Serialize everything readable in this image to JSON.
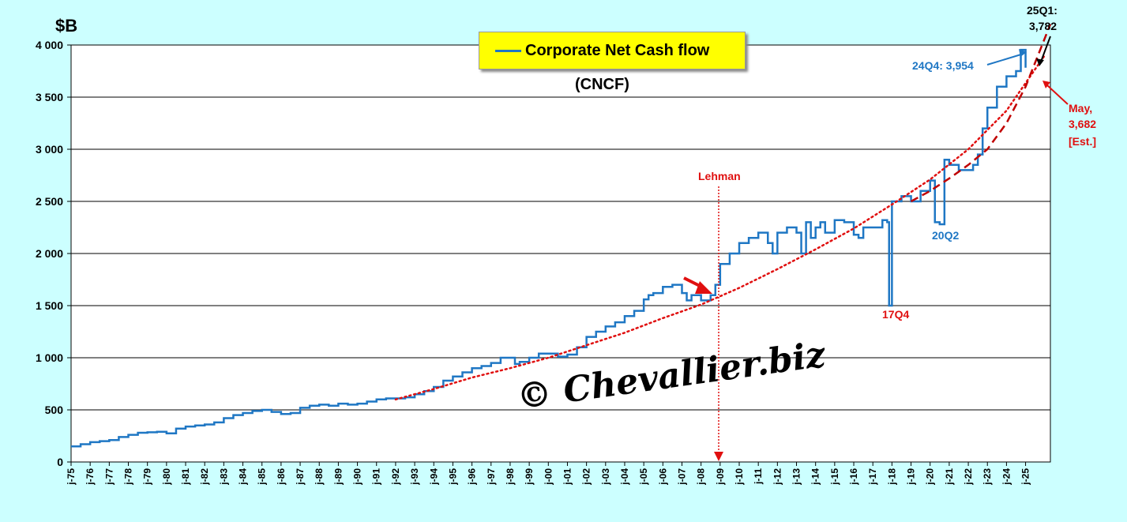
{
  "chart_data": {
    "type": "line",
    "ylabel": "$B",
    "ylim": [
      0,
      4000
    ],
    "yticks": [
      0,
      500,
      1000,
      1500,
      2000,
      2500,
      3000,
      3500,
      4000
    ],
    "ytick_labels": [
      "0",
      "500",
      "1 000",
      "1 500",
      "2 000",
      "2 500",
      "3 000",
      "3 500",
      "4 000"
    ],
    "xlim": [
      1975,
      2026.3
    ],
    "xtick_labels": [
      "j-75",
      "j-76",
      "j-77",
      "j-78",
      "j-79",
      "j-80",
      "j-81",
      "j-82",
      "j-83",
      "j-84",
      "j-85",
      "j-86",
      "j-87",
      "j-88",
      "j-89",
      "j-90",
      "j-91",
      "j-92",
      "j-93",
      "j-94",
      "j-95",
      "j-96",
      "j-97",
      "j-98",
      "j-99",
      "j-00",
      "j-01",
      "j-02",
      "j-03",
      "j-04",
      "j-05",
      "j-06",
      "j-07",
      "j-08",
      "j-09",
      "j-10",
      "j-11",
      "j-12",
      "j-13",
      "j-14",
      "j-15",
      "j-16",
      "j-17",
      "j-18",
      "j-19",
      "j-20",
      "j-21",
      "j-22",
      "j-23",
      "j-24",
      "j-25"
    ],
    "grid": true,
    "legend_label": "Corporate Net Cash flow",
    "subtitle": "(CNCF)",
    "series": [
      {
        "name": "Corporate Net Cash flow",
        "color": "#1f77c4",
        "x": [
          1975.0,
          1975.5,
          1976.0,
          1976.5,
          1977.0,
          1977.5,
          1978.0,
          1978.5,
          1979.0,
          1979.5,
          1980.0,
          1980.5,
          1981.0,
          1981.5,
          1982.0,
          1982.5,
          1983.0,
          1983.5,
          1984.0,
          1984.5,
          1985.0,
          1985.5,
          1986.0,
          1986.5,
          1987.0,
          1987.5,
          1988.0,
          1988.5,
          1989.0,
          1989.5,
          1990.0,
          1990.5,
          1991.0,
          1991.5,
          1992.0,
          1992.5,
          1993.0,
          1993.5,
          1994.0,
          1994.5,
          1995.0,
          1995.5,
          1996.0,
          1996.5,
          1997.0,
          1997.5,
          1998.0,
          1998.25,
          1998.5,
          1999.0,
          1999.5,
          2000.0,
          2000.5,
          2001.0,
          2001.5,
          2002.0,
          2002.5,
          2003.0,
          2003.5,
          2004.0,
          2004.5,
          2005.0,
          2005.25,
          2005.5,
          2006.0,
          2006.5,
          2007.0,
          2007.25,
          2007.5,
          2008.0,
          2008.5,
          2008.75,
          2009.0,
          2009.5,
          2010.0,
          2010.5,
          2011.0,
          2011.5,
          2011.75,
          2012.0,
          2012.5,
          2013.0,
          2013.25,
          2013.5,
          2013.75,
          2014.0,
          2014.25,
          2014.5,
          2015.0,
          2015.5,
          2016.0,
          2016.25,
          2016.5,
          2017.0,
          2017.5,
          2017.75,
          2017.85,
          2018.0,
          2018.5,
          2019.0,
          2019.5,
          2020.0,
          2020.25,
          2020.5,
          2020.75,
          2021.0,
          2021.5,
          2022.0,
          2022.25,
          2022.5,
          2022.75,
          2023.0,
          2023.5,
          2024.0,
          2024.5,
          2024.75,
          2025.0
        ],
        "y": [
          150,
          170,
          190,
          200,
          210,
          240,
          260,
          280,
          285,
          290,
          275,
          320,
          340,
          350,
          360,
          380,
          420,
          450,
          470,
          490,
          500,
          480,
          460,
          470,
          520,
          540,
          550,
          540,
          560,
          550,
          560,
          580,
          600,
          610,
          610,
          620,
          650,
          680,
          720,
          780,
          820,
          860,
          900,
          920,
          950,
          1000,
          1000,
          940,
          960,
          1000,
          1040,
          1040,
          1010,
          1030,
          1100,
          1200,
          1250,
          1300,
          1340,
          1400,
          1450,
          1560,
          1600,
          1620,
          1680,
          1700,
          1620,
          1550,
          1600,
          1550,
          1600,
          1700,
          1900,
          2000,
          2100,
          2150,
          2200,
          2100,
          2000,
          2200,
          2250,
          2200,
          2000,
          2300,
          2150,
          2250,
          2300,
          2200,
          2320,
          2300,
          2180,
          2150,
          2250,
          2250,
          2320,
          2300,
          1500,
          2500,
          2550,
          2500,
          2600,
          2700,
          2300,
          2280,
          2900,
          2850,
          2800,
          2800,
          2850,
          2950,
          3200,
          3400,
          3600,
          3700,
          3750,
          3954,
          3782
        ]
      },
      {
        "name": "Trend (dotted)",
        "color": "#e01010",
        "x": [
          1992,
          1994,
          1996,
          1998,
          2000,
          2002,
          2004,
          2006,
          2008,
          2010,
          2012,
          2014,
          2016,
          2018,
          2020,
          2022,
          2024,
          2026
        ],
        "y": [
          600,
          700,
          810,
          900,
          1000,
          1120,
          1240,
          1380,
          1510,
          1670,
          1850,
          2040,
          2240,
          2470,
          2710,
          3000,
          3370,
          3900
        ]
      },
      {
        "name": "Trend (dashed)",
        "color": "#c00000",
        "x": [
          2019,
          2020,
          2021,
          2022,
          2023,
          2024,
          2025,
          2026.3
        ],
        "y": [
          2500,
          2600,
          2720,
          2850,
          3000,
          3250,
          3600,
          4200
        ]
      }
    ]
  },
  "annotations": {
    "top_label_line1": "25Q1:",
    "top_label_line2": "3,782",
    "q24": "24Q4: 3,954",
    "may_line1": "May,",
    "may_line2": "3,682",
    "may_line3": "[Est.]",
    "lehman": "Lehman",
    "q17": "17Q4",
    "q20": "20Q2"
  },
  "watermark": "© Chevallier.biz"
}
